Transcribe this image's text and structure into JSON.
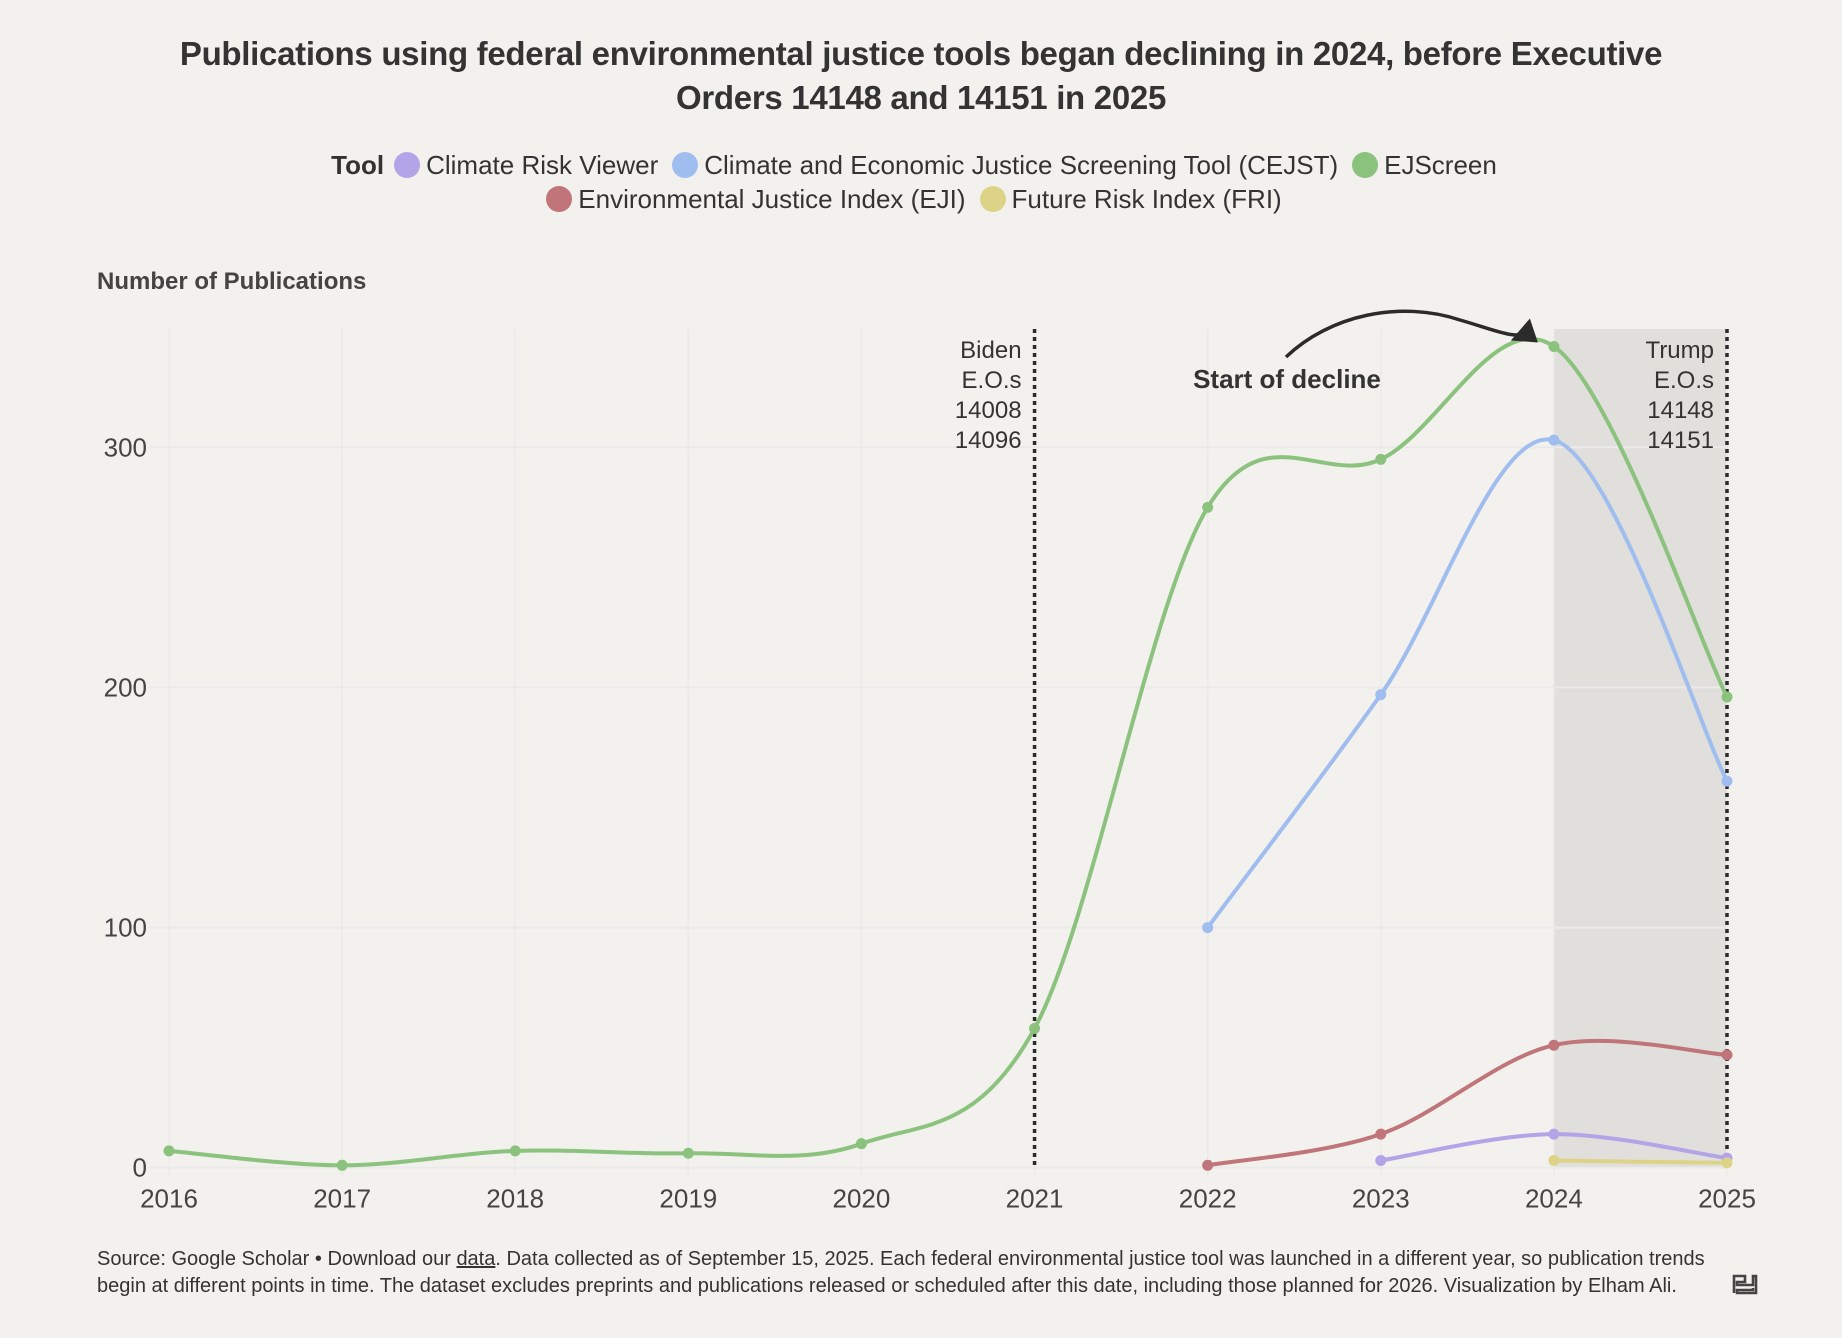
{
  "title": {
    "line1": "Publications using federal environmental justice tools began declining in 2024, before Executive",
    "line2": "Orders 14148 and 14151 in 2025"
  },
  "legend": {
    "title": "Tool",
    "rows": [
      [
        {
          "label": "Climate Risk Viewer",
          "color": "#b3a4e8"
        },
        {
          "label": "Climate and Economic Justice Screening Tool (CEJST)",
          "color": "#a0bdef"
        },
        {
          "label": "EJScreen",
          "color": "#8bc27e"
        }
      ],
      [
        {
          "label": "Environmental Justice Index (EJI)",
          "color": "#bf7579"
        },
        {
          "label": "Future Risk Index (FRI)",
          "color": "#ddd386"
        }
      ]
    ]
  },
  "footer": {
    "prefix": "Source: Google Scholar • Download our ",
    "link_text": "data",
    "suffix": ". Data collected as of September 15, 2025. Each federal environmental justice tool was launched in a different year, so publication trends begin at different points in time. The dataset excludes preprints and publications released or scheduled after this date, including those planned for 2026. Visualization by Elham Ali."
  },
  "logo": {
    "icon": "datawrapper-logo-icon"
  },
  "colors": {
    "background": "#f3f1ed",
    "shaded_region": "#e1dfdb",
    "gridline": "#ebeaea",
    "annotation": "#2b2b2b"
  },
  "chart_data": {
    "type": "line",
    "title": "Publications using federal environmental justice tools began declining in 2024, before Executive Orders 14148 and 14151 in 2025",
    "xlabel": "",
    "ylabel": "Number of Publications",
    "x": [
      2016,
      2017,
      2018,
      2019,
      2020,
      2021,
      2022,
      2023,
      2024,
      2025
    ],
    "xlim": [
      2016,
      2025
    ],
    "ylim": [
      0,
      350
    ],
    "yticks": [
      0,
      100,
      200,
      300
    ],
    "xticks": [
      2016,
      2017,
      2018,
      2019,
      2020,
      2021,
      2022,
      2023,
      2024,
      2025
    ],
    "grid": true,
    "legend_position": "top-center",
    "series": [
      {
        "name": "Climate Risk Viewer",
        "color": "#b3a4e8",
        "values": [
          null,
          null,
          null,
          null,
          null,
          null,
          null,
          3,
          14,
          4
        ]
      },
      {
        "name": "Climate and Economic Justice Screening Tool (CEJST)",
        "color": "#a0bdef",
        "values": [
          null,
          null,
          null,
          null,
          null,
          null,
          100,
          197,
          303,
          161
        ]
      },
      {
        "name": "EJScreen",
        "color": "#8bc27e",
        "values": [
          7,
          1,
          7,
          6,
          10,
          58,
          275,
          295,
          342,
          196
        ]
      },
      {
        "name": "Environmental Justice Index (EJI)",
        "color": "#bf7579",
        "values": [
          null,
          null,
          null,
          null,
          null,
          null,
          1,
          14,
          51,
          47
        ]
      },
      {
        "name": "Future Risk Index (FRI)",
        "color": "#ddd386",
        "values": [
          null,
          null,
          null,
          null,
          null,
          null,
          null,
          null,
          3,
          2
        ]
      }
    ],
    "shaded_range": {
      "from": 2024,
      "to": 2025
    },
    "annotations": [
      {
        "type": "vline",
        "x": 2021,
        "lines": [
          "Biden",
          "E.O.s",
          "14008",
          "14096"
        ]
      },
      {
        "type": "vline",
        "x": 2025,
        "lines": [
          "Trump",
          "E.O.s",
          "14148",
          "14151"
        ]
      },
      {
        "type": "arrow",
        "label": "Start of decline",
        "target_x": 2024,
        "target_series": "EJScreen"
      }
    ]
  }
}
